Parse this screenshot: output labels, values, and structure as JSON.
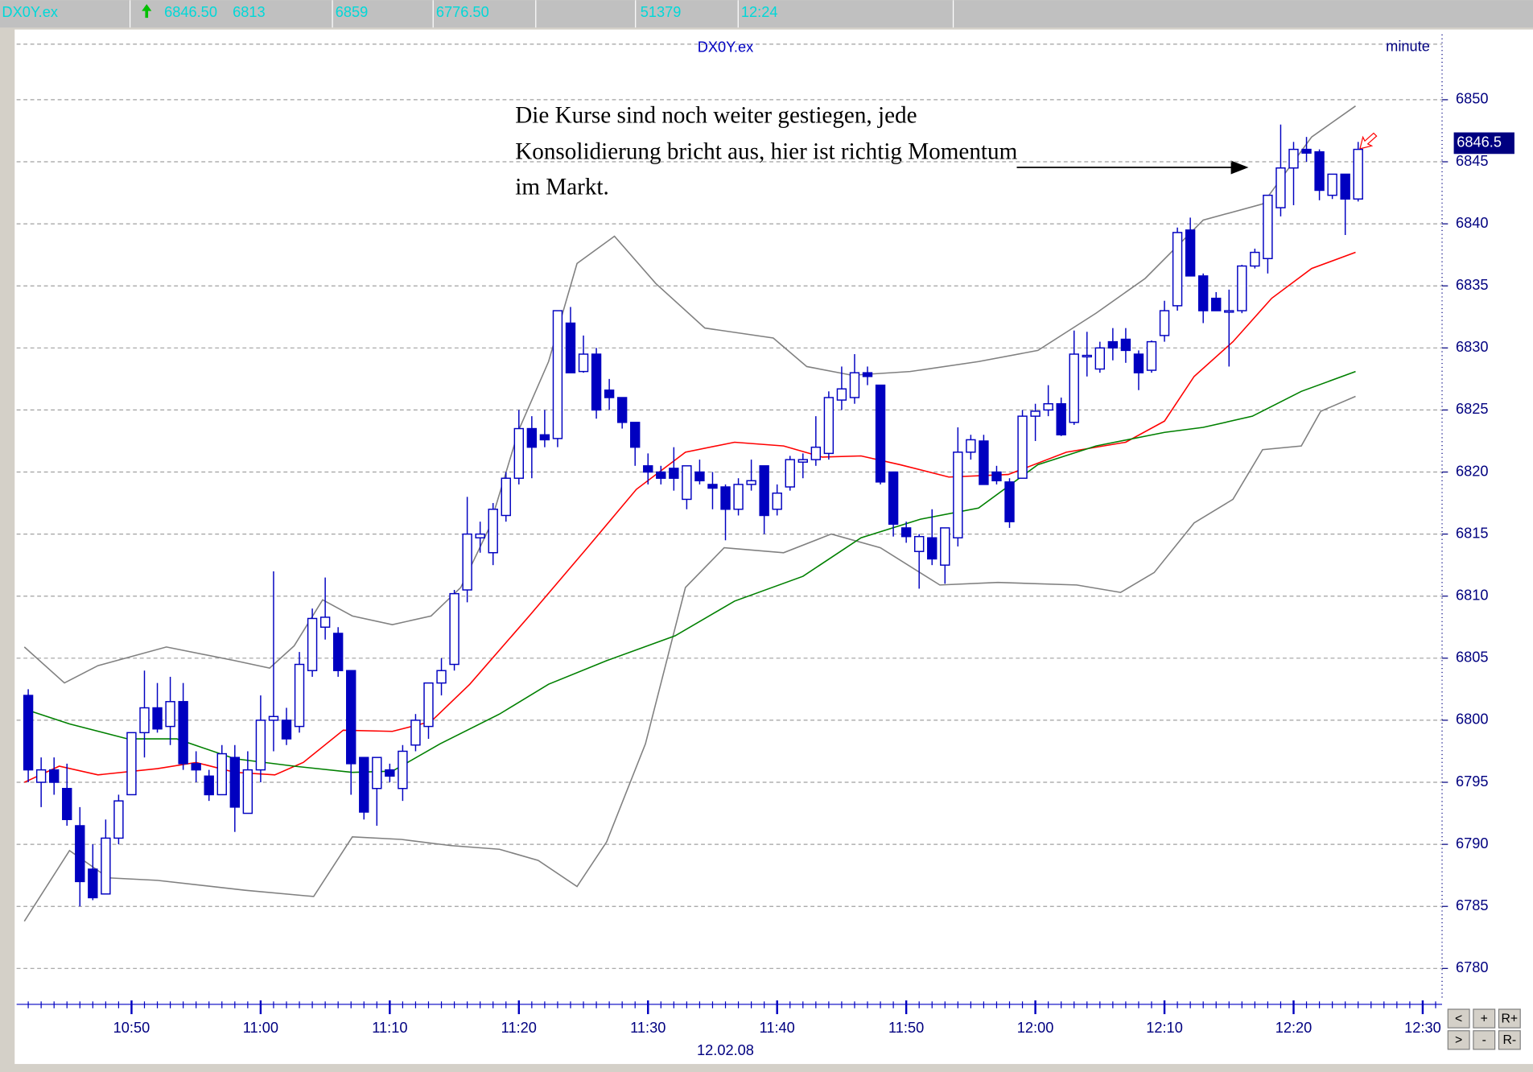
{
  "status_bar": {
    "symbol": "DX0Y.ex",
    "last": "6846.50",
    "open": "6813",
    "high": "6859",
    "low": "6776.50",
    "volume": "51379",
    "time": "12:24"
  },
  "chart_data": {
    "type": "candlestick",
    "title": "DX0Y.ex",
    "interval": "minute",
    "date": "12.02.08",
    "annotation": [
      "Die Kurse sind noch weiter gestiegen, jede",
      "Konsolidierung bricht aus, hier ist richtig Momentum",
      "im Markt."
    ],
    "last_price": 6846.5,
    "xlim": [
      641.1,
      751.5
    ],
    "ylim": [
      6777.5,
      6855.5
    ],
    "xticks": [
      {
        "value": 650,
        "label": "10:50"
      },
      {
        "value": 660,
        "label": "11:00"
      },
      {
        "value": 670,
        "label": "11:10"
      },
      {
        "value": 680,
        "label": "11:20"
      },
      {
        "value": 690,
        "label": "11:30"
      },
      {
        "value": 700,
        "label": "11:40"
      },
      {
        "value": 710,
        "label": "11:50"
      },
      {
        "value": 720,
        "label": "12:00"
      },
      {
        "value": 730,
        "label": "12:10"
      },
      {
        "value": 740,
        "label": "12:20"
      },
      {
        "value": 750,
        "label": "12:30"
      }
    ],
    "yticks": [
      6780,
      6785,
      6790,
      6795,
      6800,
      6805,
      6810,
      6815,
      6820,
      6825,
      6830,
      6835,
      6840,
      6845,
      6850
    ],
    "grid": true,
    "candles": {
      "color": "#0000c0",
      "x": [
        642,
        643,
        644,
        645,
        646,
        647,
        648,
        649,
        650,
        651,
        652,
        653,
        654,
        655,
        656,
        657,
        658,
        659,
        660,
        661,
        662,
        663,
        664,
        665,
        666,
        667,
        668,
        669,
        670,
        671,
        672,
        673,
        674,
        675,
        676,
        677,
        678,
        679,
        680,
        681,
        682,
        683,
        684,
        685,
        686,
        687,
        688,
        689,
        690,
        691,
        692,
        693,
        694,
        695,
        696,
        697,
        698,
        699,
        700,
        701,
        702,
        703,
        704,
        705,
        706,
        707,
        708,
        709,
        710,
        711,
        712,
        713,
        714,
        715,
        716,
        717,
        718,
        719,
        720,
        721,
        722,
        723,
        724,
        725,
        726,
        727,
        728,
        729,
        730,
        731,
        732,
        733,
        734,
        735,
        736,
        737,
        738,
        739,
        740,
        741,
        742,
        743,
        744,
        745
      ],
      "open": [
        6802,
        6795,
        6796,
        6794.5,
        6791.5,
        6788,
        6786,
        6790.5,
        6794,
        6799,
        6801,
        6799.5,
        6801.5,
        6796.5,
        6795.5,
        6794,
        6797,
        6792.5,
        6796,
        6800,
        6800,
        6799.5,
        6804,
        6807.5,
        6807,
        6804,
        6797,
        6794.5,
        6796,
        6794.5,
        6798,
        6799.5,
        6803,
        6804.5,
        6810.5,
        6814.7,
        6813.5,
        6816.5,
        6819.5,
        6823.5,
        6823,
        6822.7,
        6832,
        6828.1,
        6829.5,
        6826.6,
        6826,
        6824,
        6820.5,
        6820,
        6820.3,
        6817.8,
        6820,
        6819,
        6818.8,
        6817,
        6819,
        6820.5,
        6817,
        6818.8,
        6820.8,
        6821,
        6821.5,
        6825.8,
        6826,
        6828,
        6827,
        6820,
        6815.5,
        6813.6,
        6814.7,
        6812.5,
        6814.7,
        6821.6,
        6822.5,
        6820,
        6819.2,
        6819.5,
        6824.5,
        6825,
        6825.5,
        6824,
        6829.3,
        6828.3,
        6830.5,
        6830.7,
        6829.5,
        6828.2,
        6831,
        6833.4,
        6839.5,
        6835.8,
        6834,
        6833,
        6833,
        6836.6,
        6837.2,
        6841.3,
        6844.5,
        6846,
        6845.8,
        6842.3,
        6844,
        6842
      ],
      "high": [
        6802.5,
        6797,
        6797,
        6796.5,
        6793,
        6790,
        6792,
        6794,
        6799,
        6804,
        6803,
        6803.5,
        6803,
        6797.5,
        6796,
        6798,
        6798,
        6797.5,
        6802,
        6812,
        6801,
        6805.5,
        6809,
        6811.5,
        6807.5,
        6804,
        6797,
        6797,
        6796.5,
        6798,
        6800.5,
        6803,
        6805,
        6810.5,
        6818,
        6816,
        6817.5,
        6820,
        6825,
        6824.5,
        6825,
        6833,
        6833.3,
        6831,
        6830,
        6827.5,
        6826,
        6824,
        6821.5,
        6820.5,
        6822,
        6820.5,
        6821,
        6820,
        6819,
        6819.5,
        6821,
        6820.5,
        6819,
        6821.3,
        6821.5,
        6824.5,
        6826.5,
        6828.5,
        6829.5,
        6828.5,
        6827,
        6820,
        6816,
        6815,
        6817,
        6815.5,
        6823.6,
        6823,
        6823,
        6820.5,
        6819.5,
        6825,
        6825.5,
        6827,
        6826,
        6831.4,
        6831.3,
        6830.5,
        6831.6,
        6831.6,
        6829.8,
        6830.6,
        6833.8,
        6839.7,
        6840.5,
        6836,
        6834.5,
        6834.7,
        6836.7,
        6838,
        6842.3,
        6848,
        6846.6,
        6847,
        6846,
        6844,
        6844,
        6846.6
      ],
      "low": [
        6795,
        6793,
        6794,
        6791.5,
        6785,
        6785.5,
        6786,
        6790,
        6794,
        6797,
        6799,
        6798,
        6796,
        6795,
        6793.5,
        6794,
        6791,
        6792.5,
        6795,
        6797.5,
        6798,
        6799,
        6803.5,
        6806.5,
        6803.5,
        6794,
        6792,
        6791.5,
        6795,
        6793.5,
        6797.5,
        6798.5,
        6802,
        6804,
        6809.5,
        6813.5,
        6812.5,
        6816,
        6819,
        6819.5,
        6822,
        6822,
        6828,
        6828,
        6824.3,
        6825,
        6823.5,
        6820.5,
        6819,
        6819,
        6818.5,
        6817,
        6819,
        6817,
        6814.5,
        6816.5,
        6818.5,
        6815,
        6816.5,
        6818.5,
        6819.5,
        6820.5,
        6821,
        6825,
        6825.5,
        6827,
        6819,
        6814.8,
        6814.3,
        6810.6,
        6812.5,
        6811,
        6814,
        6821,
        6819,
        6819,
        6815.5,
        6819.5,
        6822.5,
        6824.5,
        6822.9,
        6823.8,
        6827.7,
        6828,
        6829,
        6828.8,
        6826.6,
        6828,
        6830.5,
        6833,
        6835.8,
        6832,
        6833,
        6828.5,
        6832.8,
        6836.4,
        6836,
        6840.6,
        6841.5,
        6845,
        6841.9,
        6842,
        6839.1,
        6841.8
      ],
      "close": [
        6796,
        6796,
        6795,
        6792,
        6787,
        6785.7,
        6790.5,
        6793.5,
        6799,
        6801,
        6799.3,
        6801.5,
        6796.5,
        6796,
        6794,
        6797.3,
        6793,
        6796,
        6800,
        6800.3,
        6798.5,
        6804.5,
        6808.2,
        6808.3,
        6804,
        6796.5,
        6792.6,
        6797,
        6795.5,
        6797.5,
        6800,
        6803,
        6804,
        6810.2,
        6815,
        6815,
        6817,
        6819.5,
        6823.5,
        6822,
        6822.6,
        6833,
        6828,
        6829.5,
        6825,
        6826,
        6824,
        6822,
        6820,
        6819.5,
        6819.5,
        6820.5,
        6819.3,
        6818.7,
        6817,
        6819,
        6819.3,
        6816.5,
        6818.3,
        6821,
        6821,
        6822,
        6826,
        6826.7,
        6828,
        6827.7,
        6819.2,
        6815.8,
        6814.8,
        6814.8,
        6813,
        6815.5,
        6821.6,
        6822.6,
        6819,
        6819.3,
        6816,
        6824.5,
        6824.9,
        6825.5,
        6823,
        6829.5,
        6829.4,
        6830,
        6830,
        6829.8,
        6828,
        6830.5,
        6833,
        6839.3,
        6835.8,
        6833,
        6833,
        6833,
        6836.6,
        6837.7,
        6842.3,
        6844.5,
        6846,
        6845.7,
        6842.7,
        6844,
        6842,
        6846
      ]
    },
    "lines": [
      {
        "color": "#808080",
        "x": [
          641.7,
          644.8,
          647.4,
          652.7,
          658.0,
          660.7,
          662.6,
          664.8,
          667.1,
          670.2,
          673.2,
          675.5,
          677.7,
          680.0,
          682.3,
          684.5,
          687.4,
          690.6,
          694.4,
          699.7,
          702.3,
          705.8,
          710.3,
          715.6,
          720.2,
          724.7,
          728.5,
          733.0,
          737.6,
          741.4,
          744.8
        ],
        "values": [
          6805.9,
          6803,
          6804.4,
          6805.9,
          6804.8,
          6804.2,
          6806,
          6809.7,
          6808.4,
          6807.7,
          6808.4,
          6810.7,
          6815.5,
          6823.4,
          6828.9,
          6836.8,
          6839,
          6835.2,
          6831.6,
          6830.8,
          6828.5,
          6827.8,
          6828.1,
          6828.9,
          6829.8,
          6832.8,
          6835.6,
          6840.3,
          6841.6,
          6847,
          6849.5
        ]
      },
      {
        "color": "#808080",
        "x": [
          641.7,
          645.2,
          648.2,
          652.0,
          658.8,
          664.1,
          667.1,
          670.9,
          674.7,
          678.5,
          681.5,
          684.5,
          686.8,
          689.8,
          692.9,
          695.9,
          700.5,
          704.2,
          708.0,
          712.6,
          717.1,
          723.2,
          726.6,
          729.2,
          732.3,
          735.3,
          737.6,
          740.6,
          742.1,
          744.8
        ],
        "values": [
          6783.8,
          6789.5,
          6787.3,
          6787.1,
          6786.3,
          6785.8,
          6790.6,
          6790.4,
          6789.9,
          6789.6,
          6788.7,
          6786.6,
          6790.2,
          6798.1,
          6810.7,
          6813.9,
          6813.5,
          6815,
          6813.9,
          6810.9,
          6811.1,
          6810.9,
          6810.3,
          6811.9,
          6815.9,
          6817.8,
          6821.8,
          6822.1,
          6824.9,
          6826.1
        ]
      },
      {
        "color": "#ff0000",
        "x": [
          641.7,
          644.4,
          647.4,
          652.0,
          655.0,
          658.0,
          661.1,
          663.3,
          666.4,
          670.2,
          673.2,
          676.2,
          680.8,
          685.3,
          689.1,
          692.9,
          696.7,
          700.5,
          703.5,
          706.5,
          709.5,
          713.3,
          717.9,
          722.4,
          727.0,
          730.0,
          732.3,
          735.3,
          738.3,
          741.4,
          744.8
        ],
        "values": [
          6795,
          6796.3,
          6795.6,
          6796.1,
          6796.6,
          6795.8,
          6795.6,
          6796.6,
          6799.2,
          6799.1,
          6799.9,
          6802.9,
          6808.4,
          6813.9,
          6818.6,
          6821.6,
          6822.4,
          6822.1,
          6821.2,
          6821.3,
          6820.6,
          6819.6,
          6819.8,
          6821.6,
          6822.4,
          6824.1,
          6827.7,
          6830.5,
          6834,
          6836.4,
          6837.7
        ]
      },
      {
        "color": "#008000",
        "x": [
          641.7,
          645.2,
          649.7,
          653.5,
          658.0,
          662.6,
          667.1,
          670.2,
          673.9,
          678.5,
          682.3,
          686.8,
          692.1,
          696.7,
          702.0,
          706.5,
          711.1,
          715.6,
          720.2,
          724.7,
          730.0,
          733.0,
          736.8,
          740.6,
          744.8
        ],
        "values": [
          6800.9,
          6799.7,
          6798.5,
          6798.5,
          6796.9,
          6796.3,
          6795.8,
          6795.9,
          6798.1,
          6800.5,
          6802.9,
          6804.8,
          6806.8,
          6809.6,
          6811.6,
          6814.7,
          6816.2,
          6817.1,
          6820.6,
          6822.1,
          6823.2,
          6823.6,
          6824.5,
          6826.5,
          6828.1
        ]
      }
    ]
  },
  "buttons": [
    "<",
    "+",
    "R+",
    ">",
    "-",
    "R-"
  ]
}
